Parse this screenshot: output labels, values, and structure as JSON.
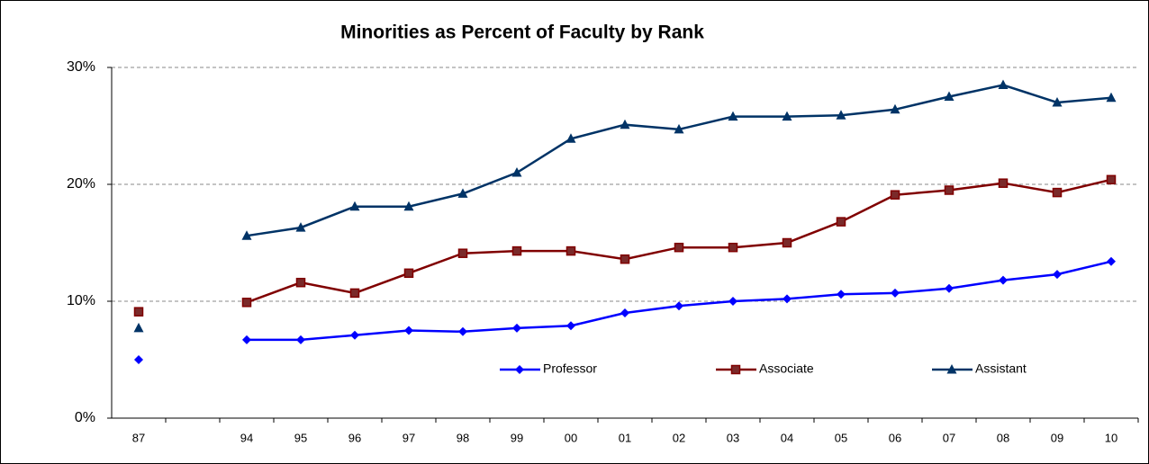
{
  "chart_data": {
    "type": "line",
    "title": "Minorities as Percent of Faculty by Rank",
    "categories": [
      "87",
      null,
      "94",
      "95",
      "96",
      "97",
      "98",
      "99",
      "00",
      "01",
      "02",
      "03",
      "04",
      "05",
      "06",
      "07",
      "08",
      "09",
      "10"
    ],
    "series": [
      {
        "name": "Professor",
        "color": "#0000ff",
        "marker": "diamond",
        "values": [
          5.0,
          null,
          6.7,
          6.7,
          7.1,
          7.5,
          7.4,
          7.7,
          7.9,
          9.0,
          9.6,
          10.0,
          10.2,
          10.6,
          10.7,
          11.1,
          11.8,
          12.3,
          13.4
        ]
      },
      {
        "name": "Associate",
        "color": "#800000",
        "marker": "square",
        "values": [
          9.1,
          null,
          9.9,
          11.6,
          10.7,
          12.4,
          14.1,
          14.3,
          14.3,
          13.6,
          14.6,
          14.6,
          15.0,
          16.8,
          19.1,
          19.5,
          20.1,
          19.3,
          20.4
        ]
      },
      {
        "name": "Assistant",
        "color": "#003366",
        "marker": "triangle",
        "values": [
          7.7,
          null,
          15.6,
          16.3,
          18.1,
          18.1,
          19.2,
          21.0,
          23.9,
          25.1,
          24.7,
          25.8,
          25.8,
          25.9,
          26.4,
          27.5,
          28.5,
          27.0,
          27.4
        ]
      }
    ],
    "ylim": [
      0,
      30
    ],
    "yticks": [
      {
        "value": 0,
        "label": "0%"
      },
      {
        "value": 10,
        "label": "10%"
      },
      {
        "value": 20,
        "label": "20%"
      },
      {
        "value": 30,
        "label": "30%"
      }
    ],
    "grid": true,
    "legend": "bottom"
  }
}
